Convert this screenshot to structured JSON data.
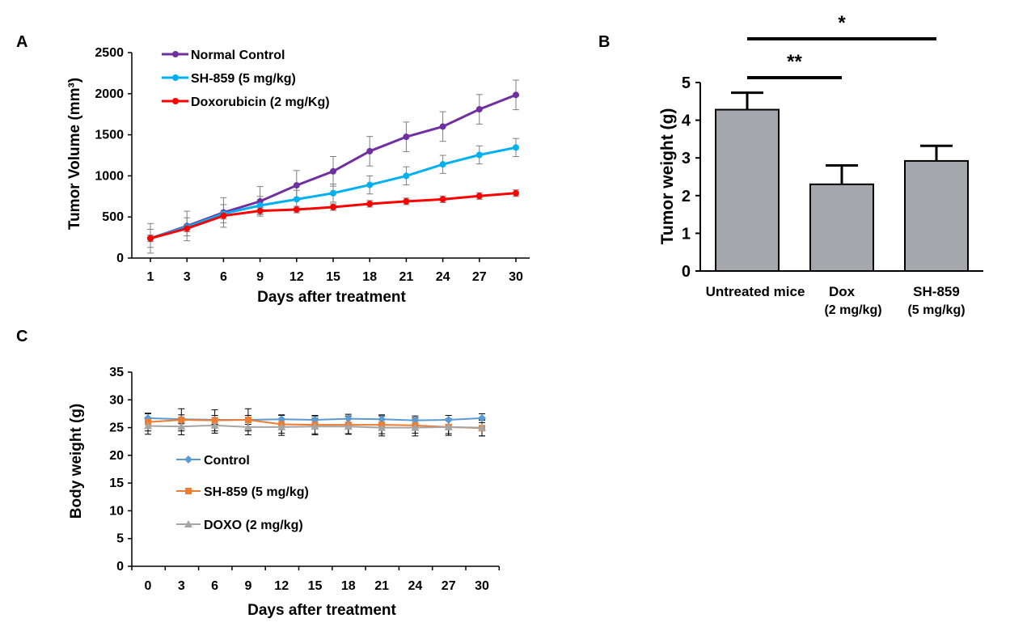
{
  "panel_labels": {
    "a": "A",
    "b": "B",
    "c": "C"
  },
  "chart_data": [
    {
      "panel": "A",
      "type": "line",
      "title": "",
      "xlabel": "Days after treatment",
      "ylabel": "Tumor Volume (mm³)",
      "x": [
        1,
        3,
        6,
        9,
        12,
        15,
        18,
        21,
        24,
        27,
        30
      ],
      "ylim": [
        0,
        2500
      ],
      "yticks": [
        0,
        500,
        1000,
        1500,
        2000,
        2500
      ],
      "legend_position": "top-left",
      "series": [
        {
          "name": "Normal Control",
          "color": "#7030a0",
          "values": [
            240,
            390,
            555,
            690,
            885,
            1055,
            1300,
            1475,
            1600,
            1810,
            1985
          ],
          "errors": [
            180,
            180,
            180,
            180,
            180,
            180,
            180,
            180,
            180,
            180,
            180
          ]
        },
        {
          "name": "SH-859 (5 mg/kg)",
          "color": "#00b0f0",
          "values": [
            240,
            380,
            540,
            640,
            715,
            790,
            890,
            1000,
            1140,
            1255,
            1345
          ],
          "errors": [
            110,
            110,
            110,
            110,
            110,
            110,
            110,
            110,
            110,
            110,
            110
          ]
        },
        {
          "name": "Doxorubicin (2 mg/Kg)",
          "color": "#ff0000",
          "values": [
            240,
            360,
            515,
            575,
            590,
            620,
            660,
            690,
            715,
            755,
            790
          ],
          "errors": [
            40,
            40,
            40,
            40,
            40,
            40,
            40,
            40,
            40,
            40,
            40
          ]
        }
      ]
    },
    {
      "panel": "B",
      "type": "bar",
      "title": "",
      "xlabel": "",
      "ylabel": "Tumor weight (g)",
      "categories": [
        {
          "line1": "Untreated mice",
          "line2": ""
        },
        {
          "line1": "Dox",
          "line2": "(2 mg/kg)"
        },
        {
          "line1": "SH-859",
          "line2": "(5 mg/kg)"
        }
      ],
      "values": [
        4.28,
        2.3,
        2.92
      ],
      "errors": [
        0.45,
        0.5,
        0.4
      ],
      "ylim": [
        0,
        5
      ],
      "yticks": [
        0,
        1,
        2,
        3,
        4,
        5
      ],
      "bar_color": "#a6a6ad",
      "significance": [
        {
          "label": "*",
          "from": 0,
          "to": 2
        },
        {
          "label": "**",
          "from": 0,
          "to": 1
        }
      ]
    },
    {
      "panel": "C",
      "type": "line",
      "title": "",
      "xlabel": "Days after treatment",
      "ylabel": "Body  weight (g)",
      "x": [
        0,
        3,
        6,
        9,
        12,
        15,
        18,
        21,
        24,
        27,
        30
      ],
      "ylim": [
        0,
        35
      ],
      "yticks": [
        0,
        5,
        10,
        15,
        20,
        25,
        30,
        35
      ],
      "legend_position": "left",
      "series": [
        {
          "name": "Control",
          "color": "#5b9bd5",
          "marker": "diamond",
          "values": [
            26.7,
            26.5,
            26.4,
            26.4,
            26.5,
            26.4,
            26.6,
            26.5,
            26.3,
            26.4,
            26.7
          ],
          "errors": [
            0.8,
            0.8,
            0.8,
            0.8,
            0.8,
            0.8,
            0.8,
            0.8,
            0.8,
            0.8,
            0.8
          ]
        },
        {
          "name": "SH-859 (5 mg/kg)",
          "color": "#ed7d31",
          "marker": "square",
          "values": [
            26.0,
            26.4,
            26.3,
            26.4,
            25.6,
            25.5,
            25.5,
            25.5,
            25.4,
            25.1,
            24.9
          ],
          "errors": [
            1.6,
            2.0,
            1.9,
            2.0,
            1.6,
            1.6,
            1.6,
            1.6,
            1.4,
            1.2,
            1.4
          ]
        },
        {
          "name": "DOXO (2 mg/kg)",
          "color": "#a5a5a5",
          "marker": "triangle",
          "values": [
            25.3,
            25.2,
            25.4,
            25.1,
            25.1,
            25.2,
            25.2,
            25.0,
            25.0,
            25.1,
            25.0
          ],
          "errors": [
            1.5,
            1.5,
            1.4,
            1.4,
            1.5,
            1.5,
            1.4,
            1.5,
            1.5,
            1.5,
            1.5
          ]
        }
      ]
    }
  ]
}
